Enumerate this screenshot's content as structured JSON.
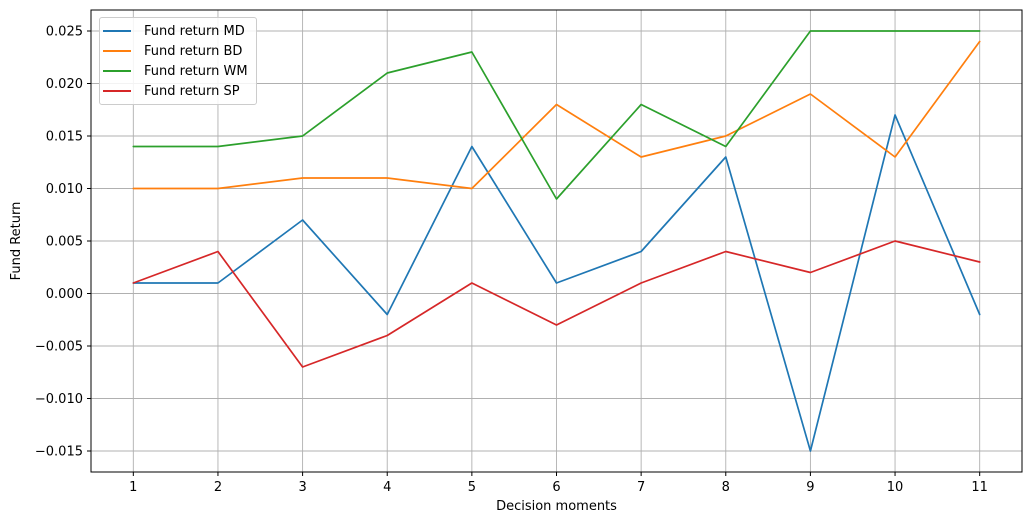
{
  "chart_data": {
    "type": "line",
    "title": "",
    "xlabel": "Decision moments",
    "ylabel": "Fund Return",
    "x": [
      1,
      2,
      3,
      4,
      5,
      6,
      7,
      8,
      9,
      10,
      11
    ],
    "series": [
      {
        "name": "Fund return MD",
        "color": "#1f77b4",
        "values": [
          0.001,
          0.001,
          0.007,
          -0.002,
          0.014,
          0.001,
          0.004,
          0.013,
          -0.015,
          0.017,
          -0.002
        ]
      },
      {
        "name": "Fund return BD",
        "color": "#ff7f0e",
        "values": [
          0.01,
          0.01,
          0.011,
          0.011,
          0.01,
          0.018,
          0.013,
          0.015,
          0.019,
          0.013,
          0.024
        ]
      },
      {
        "name": "Fund return WM",
        "color": "#2ca02c",
        "values": [
          0.014,
          0.014,
          0.015,
          0.021,
          0.023,
          0.009,
          0.018,
          0.014,
          0.025,
          0.025,
          0.025
        ]
      },
      {
        "name": "Fund return SP",
        "color": "#d62728",
        "values": [
          0.001,
          0.004,
          -0.007,
          -0.004,
          0.001,
          -0.003,
          0.001,
          0.004,
          0.002,
          0.005,
          0.003
        ]
      }
    ],
    "xlim": [
      0.5,
      11.5
    ],
    "ylim": [
      -0.017,
      0.027
    ],
    "xticks": [
      1,
      2,
      3,
      4,
      5,
      6,
      7,
      8,
      9,
      10,
      11
    ],
    "xtick_labels": [
      "1",
      "2",
      "3",
      "4",
      "5",
      "6",
      "7",
      "8",
      "9",
      "10",
      "11"
    ],
    "yticks": [
      0.025,
      0.02,
      0.015,
      0.01,
      0.005,
      0.0,
      -0.005,
      -0.01,
      -0.015
    ],
    "ytick_labels": [
      "0.025",
      "0.020",
      "0.015",
      "0.010",
      "0.005",
      "0.000",
      "−0.005",
      "−0.010",
      "−0.015"
    ],
    "grid": true,
    "grid_color": "#b0b0b0",
    "spine_color": "#000000",
    "legend_position": "upper left"
  }
}
